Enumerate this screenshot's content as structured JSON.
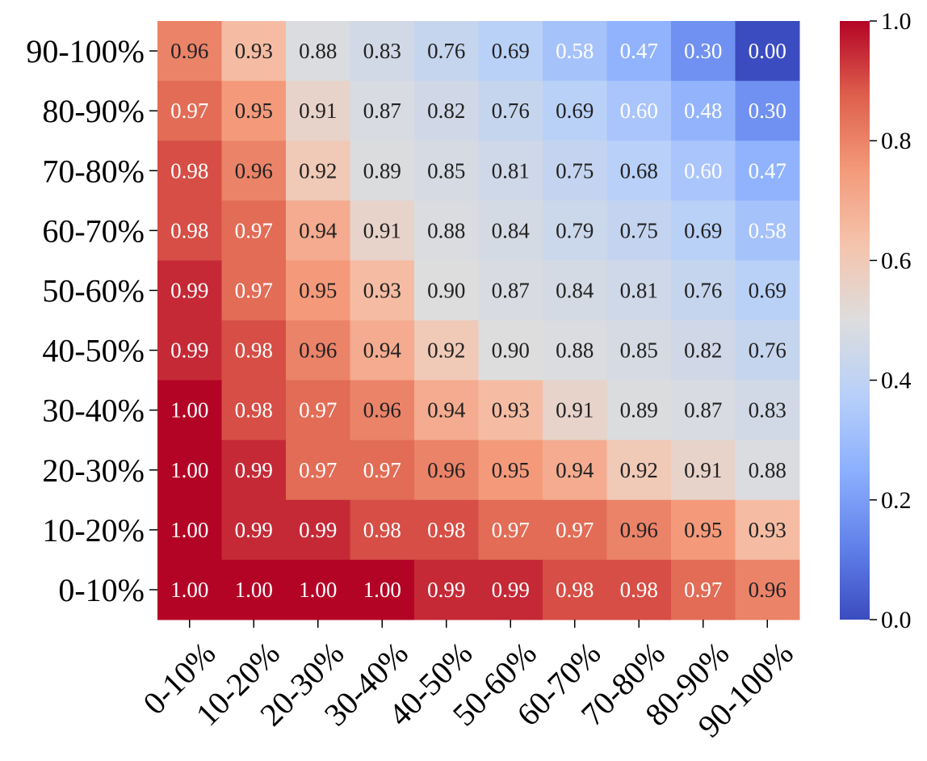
{
  "chart_data": {
    "type": "heatmap",
    "title": "",
    "xlabel": "",
    "ylabel": "",
    "x_categories": [
      "0-10%",
      "10-20%",
      "20-30%",
      "30-40%",
      "40-50%",
      "50-60%",
      "60-70%",
      "70-80%",
      "80-90%",
      "90-100%"
    ],
    "y_categories": [
      "90-100%",
      "80-90%",
      "70-80%",
      "60-70%",
      "50-60%",
      "40-50%",
      "30-40%",
      "20-30%",
      "10-20%",
      "0-10%"
    ],
    "values": [
      [
        0.96,
        0.93,
        0.88,
        0.83,
        0.76,
        0.69,
        0.58,
        0.47,
        0.3,
        0.0
      ],
      [
        0.97,
        0.95,
        0.91,
        0.87,
        0.82,
        0.76,
        0.69,
        0.6,
        0.48,
        0.3
      ],
      [
        0.98,
        0.96,
        0.92,
        0.89,
        0.85,
        0.81,
        0.75,
        0.68,
        0.6,
        0.47
      ],
      [
        0.98,
        0.97,
        0.94,
        0.91,
        0.88,
        0.84,
        0.79,
        0.75,
        0.69,
        0.58
      ],
      [
        0.99,
        0.97,
        0.95,
        0.93,
        0.9,
        0.87,
        0.84,
        0.81,
        0.76,
        0.69
      ],
      [
        0.99,
        0.98,
        0.96,
        0.94,
        0.92,
        0.9,
        0.88,
        0.85,
        0.82,
        0.76
      ],
      [
        1.0,
        0.98,
        0.97,
        0.96,
        0.94,
        0.93,
        0.91,
        0.89,
        0.87,
        0.83
      ],
      [
        1.0,
        0.99,
        0.97,
        0.97,
        0.96,
        0.95,
        0.94,
        0.92,
        0.91,
        0.88
      ],
      [
        1.0,
        0.99,
        0.99,
        0.98,
        0.98,
        0.97,
        0.97,
        0.96,
        0.95,
        0.93
      ],
      [
        1.0,
        1.0,
        1.0,
        1.0,
        0.99,
        0.99,
        0.98,
        0.98,
        0.97,
        0.96
      ]
    ],
    "colormap": "coolwarm",
    "vmin": 0.0,
    "vmax": 1.0,
    "colorbar_ticks": [
      "0.0",
      "0.2",
      "0.4",
      "0.6",
      "0.8",
      "1.0"
    ],
    "x_tick_rotation_deg": 45,
    "annotations": true,
    "grid": false,
    "legend": "colorbar-right"
  }
}
